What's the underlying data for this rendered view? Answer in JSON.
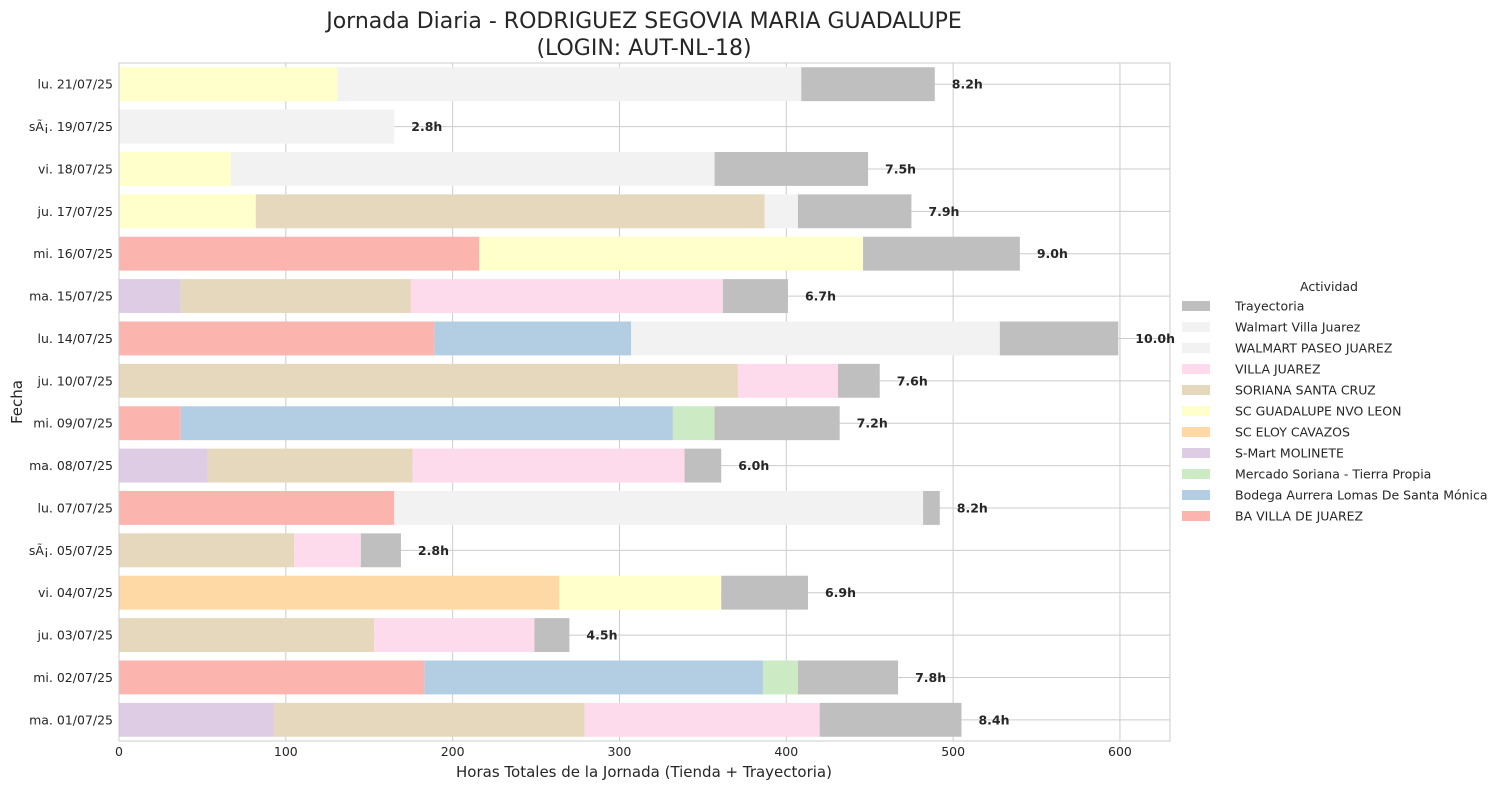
{
  "chart_data": {
    "type": "bar",
    "orientation": "horizontal",
    "stacked": true,
    "title_line1": "Jornada Diaria - RODRIGUEZ SEGOVIA MARIA GUADALUPE",
    "title_line2": "(LOGIN: AUT-NL-18)",
    "xlabel": "Horas Totales de la Jornada (Tienda + Trayectoria)",
    "ylabel": "Fecha",
    "xlim": [
      0,
      630
    ],
    "xticks": [
      0,
      100,
      200,
      300,
      400,
      500,
      600
    ],
    "grid": true,
    "legend": {
      "title": "Actividad",
      "placement": "center-right",
      "entries": [
        {
          "name": "Trayectoria",
          "color": "#bfbfbf"
        },
        {
          "name": "Walmart Villa Juarez",
          "color": "#f2f2f2"
        },
        {
          "name": "WALMART PASEO JUAREZ",
          "color": "#f2f2f2"
        },
        {
          "name": "VILLA JUAREZ",
          "color": "#fddaec"
        },
        {
          "name": "SORIANA SANTA CRUZ",
          "color": "#e5d8bd"
        },
        {
          "name": "SC GUADALUPE NVO LEON",
          "color": "#ffffcc"
        },
        {
          "name": "SC ELOY CAVAZOS",
          "color": "#fed9a6"
        },
        {
          "name": "S-Mart MOLINETE",
          "color": "#decbe4"
        },
        {
          "name": "Mercado Soriana - Tierra Propia",
          "color": "#ccebc5"
        },
        {
          "name": "Bodega Aurrera Lomas De Santa Mónica",
          "color": "#b3cde3"
        },
        {
          "name": "BA VILLA DE JUAREZ",
          "color": "#fbb4ae"
        }
      ]
    },
    "rows": [
      {
        "label": "lu. 21/07/25",
        "total_label": "8.2h",
        "segments": [
          {
            "activity": "SC GUADALUPE NVO LEON",
            "value": 131
          },
          {
            "activity": "Walmart Villa Juarez",
            "value": 278
          },
          {
            "activity": "Trayectoria",
            "value": 80
          }
        ]
      },
      {
        "label": "sÃ¡. 19/07/25",
        "total_label": "2.8h",
        "segments": [
          {
            "activity": "Walmart Villa Juarez",
            "value": 165
          }
        ]
      },
      {
        "label": "vi. 18/07/25",
        "total_label": "7.5h",
        "segments": [
          {
            "activity": "SC GUADALUPE NVO LEON",
            "value": 67
          },
          {
            "activity": "Walmart Villa Juarez",
            "value": 290
          },
          {
            "activity": "Trayectoria",
            "value": 92
          }
        ]
      },
      {
        "label": "ju. 17/07/25",
        "total_label": "7.9h",
        "segments": [
          {
            "activity": "SC GUADALUPE NVO LEON",
            "value": 82
          },
          {
            "activity": "SORIANA SANTA CRUZ",
            "value": 305
          },
          {
            "activity": "Walmart Villa Juarez",
            "value": 20
          },
          {
            "activity": "Trayectoria",
            "value": 68
          }
        ]
      },
      {
        "label": "mi. 16/07/25",
        "total_label": "9.0h",
        "segments": [
          {
            "activity": "BA VILLA DE JUAREZ",
            "value": 216
          },
          {
            "activity": "SC GUADALUPE NVO LEON",
            "value": 230
          },
          {
            "activity": "Trayectoria",
            "value": 94
          }
        ]
      },
      {
        "label": "ma. 15/07/25",
        "total_label": "6.7h",
        "segments": [
          {
            "activity": "S-Mart MOLINETE",
            "value": 37
          },
          {
            "activity": "SORIANA SANTA CRUZ",
            "value": 138
          },
          {
            "activity": "VILLA JUAREZ",
            "value": 187
          },
          {
            "activity": "Trayectoria",
            "value": 39
          }
        ]
      },
      {
        "label": "lu. 14/07/25",
        "total_label": "10.0h",
        "segments": [
          {
            "activity": "BA VILLA DE JUAREZ",
            "value": 189
          },
          {
            "activity": "Bodega Aurrera Lomas De Santa Mónica",
            "value": 118
          },
          {
            "activity": "Walmart Villa Juarez",
            "value": 221
          },
          {
            "activity": "Trayectoria",
            "value": 71
          }
        ]
      },
      {
        "label": "ju. 10/07/25",
        "total_label": "7.6h",
        "segments": [
          {
            "activity": "SORIANA SANTA CRUZ",
            "value": 371
          },
          {
            "activity": "VILLA JUAREZ",
            "value": 60
          },
          {
            "activity": "Trayectoria",
            "value": 25
          }
        ]
      },
      {
        "label": "mi. 09/07/25",
        "total_label": "7.2h",
        "segments": [
          {
            "activity": "BA VILLA DE JUAREZ",
            "value": 37
          },
          {
            "activity": "Bodega Aurrera Lomas De Santa Mónica",
            "value": 295
          },
          {
            "activity": "Mercado Soriana - Tierra Propia",
            "value": 25
          },
          {
            "activity": "Trayectoria",
            "value": 75
          }
        ]
      },
      {
        "label": "ma. 08/07/25",
        "total_label": "6.0h",
        "segments": [
          {
            "activity": "S-Mart MOLINETE",
            "value": 53
          },
          {
            "activity": "SORIANA SANTA CRUZ",
            "value": 123
          },
          {
            "activity": "VILLA JUAREZ",
            "value": 163
          },
          {
            "activity": "Trayectoria",
            "value": 22
          }
        ]
      },
      {
        "label": "lu. 07/07/25",
        "total_label": "8.2h",
        "segments": [
          {
            "activity": "BA VILLA DE JUAREZ",
            "value": 165
          },
          {
            "activity": "WALMART PASEO JUAREZ",
            "value": 317
          },
          {
            "activity": "Trayectoria",
            "value": 10
          }
        ]
      },
      {
        "label": "sÃ¡. 05/07/25",
        "total_label": "2.8h",
        "segments": [
          {
            "activity": "SORIANA SANTA CRUZ",
            "value": 105
          },
          {
            "activity": "VILLA JUAREZ",
            "value": 40
          },
          {
            "activity": "Trayectoria",
            "value": 24
          }
        ]
      },
      {
        "label": "vi. 04/07/25",
        "total_label": "6.9h",
        "segments": [
          {
            "activity": "SC ELOY CAVAZOS",
            "value": 264
          },
          {
            "activity": "SC GUADALUPE NVO LEON",
            "value": 97
          },
          {
            "activity": "Trayectoria",
            "value": 52
          }
        ]
      },
      {
        "label": "ju. 03/07/25",
        "total_label": "4.5h",
        "segments": [
          {
            "activity": "SORIANA SANTA CRUZ",
            "value": 153
          },
          {
            "activity": "VILLA JUAREZ",
            "value": 96
          },
          {
            "activity": "Trayectoria",
            "value": 21
          }
        ]
      },
      {
        "label": "mi. 02/07/25",
        "total_label": "7.8h",
        "segments": [
          {
            "activity": "BA VILLA DE JUAREZ",
            "value": 183
          },
          {
            "activity": "Bodega Aurrera Lomas De Santa Mónica",
            "value": 203
          },
          {
            "activity": "Mercado Soriana - Tierra Propia",
            "value": 21
          },
          {
            "activity": "Trayectoria",
            "value": 60
          }
        ]
      },
      {
        "label": "ma. 01/07/25",
        "total_label": "8.4h",
        "segments": [
          {
            "activity": "S-Mart MOLINETE",
            "value": 93
          },
          {
            "activity": "SORIANA SANTA CRUZ",
            "value": 186
          },
          {
            "activity": "VILLA JUAREZ",
            "value": 141
          },
          {
            "activity": "Trayectoria",
            "value": 85
          }
        ]
      }
    ]
  }
}
